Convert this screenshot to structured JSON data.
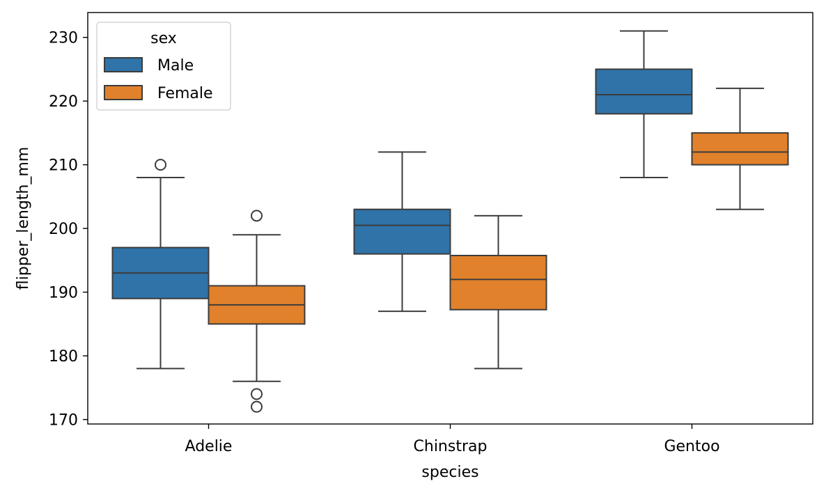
{
  "chart_data": {
    "type": "boxplot",
    "title": "",
    "xlabel": "species",
    "ylabel": "flipper_length_mm",
    "categories": [
      "Adelie",
      "Chinstrap",
      "Gentoo"
    ],
    "ylim": [
      169.3,
      233.9
    ],
    "yticks": [
      170,
      180,
      190,
      200,
      210,
      220,
      230
    ],
    "grid": false,
    "legend": {
      "title": "sex",
      "placement": "upper-left"
    },
    "series": [
      {
        "name": "Male",
        "color": "#2f73a8",
        "boxes": [
          {
            "category": "Adelie",
            "whisker_low": 178,
            "q1": 189,
            "median": 193,
            "q3": 197,
            "whisker_high": 208,
            "outliers": [
              210
            ]
          },
          {
            "category": "Chinstrap",
            "whisker_low": 187,
            "q1": 196,
            "median": 200.5,
            "q3": 203,
            "whisker_high": 212,
            "outliers": []
          },
          {
            "category": "Gentoo",
            "whisker_low": 208,
            "q1": 218,
            "median": 221,
            "q3": 225,
            "whisker_high": 231,
            "outliers": []
          }
        ]
      },
      {
        "name": "Female",
        "color": "#e1812c",
        "boxes": [
          {
            "category": "Adelie",
            "whisker_low": 176,
            "q1": 185,
            "median": 188,
            "q3": 191,
            "whisker_high": 199,
            "outliers": [
              202,
              174,
              172
            ]
          },
          {
            "category": "Chinstrap",
            "whisker_low": 178,
            "q1": 187.25,
            "median": 192,
            "q3": 195.75,
            "whisker_high": 202,
            "outliers": []
          },
          {
            "category": "Gentoo",
            "whisker_low": 203,
            "q1": 210,
            "median": 212,
            "q3": 215,
            "whisker_high": 222,
            "outliers": []
          }
        ]
      }
    ]
  }
}
